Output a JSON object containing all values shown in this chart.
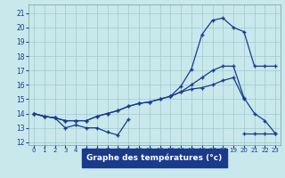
{
  "title": "Graphe des températures (°c)",
  "bg_color": "#c8e8ec",
  "line_color": "#1a3a8c",
  "grid_color": "#a0c8cc",
  "xlim": [
    -0.5,
    23.5
  ],
  "ylim": [
    11.8,
    21.6
  ],
  "xticks": [
    0,
    1,
    2,
    3,
    4,
    5,
    6,
    7,
    8,
    9,
    10,
    11,
    12,
    13,
    14,
    15,
    16,
    17,
    18,
    19,
    20,
    21,
    22,
    23
  ],
  "yticks": [
    12,
    13,
    14,
    15,
    16,
    17,
    18,
    19,
    20,
    21
  ],
  "series": [
    {
      "segs": [
        {
          "x": [
            0,
            1,
            2,
            3,
            4,
            5,
            6,
            7,
            8,
            9
          ],
          "y": [
            14.0,
            13.8,
            13.7,
            13.0,
            13.2,
            13.0,
            13.0,
            12.7,
            12.5,
            13.6
          ]
        },
        {
          "x": [
            20,
            21,
            22,
            23
          ],
          "y": [
            12.6,
            12.6,
            12.6,
            12.6
          ]
        }
      ]
    },
    {
      "segs": [
        {
          "x": [
            0,
            1,
            2,
            3,
            4,
            5,
            6,
            7,
            8,
            9,
            10,
            11,
            12,
            13,
            14,
            15,
            16,
            17,
            18,
            19,
            20
          ],
          "y": [
            14.0,
            13.8,
            13.7,
            13.5,
            13.5,
            13.5,
            13.8,
            14.0,
            14.2,
            14.5,
            14.7,
            14.8,
            15.0,
            15.2,
            15.5,
            15.7,
            15.8,
            16.0,
            16.3,
            16.5,
            15.0
          ]
        }
      ]
    },
    {
      "segs": [
        {
          "x": [
            0,
            1,
            2,
            3,
            4,
            5,
            6,
            7,
            8,
            9,
            10,
            11,
            12,
            13,
            14,
            15,
            16,
            17,
            18,
            19,
            20,
            21,
            22,
            23
          ],
          "y": [
            14.0,
            13.8,
            13.7,
            13.5,
            13.5,
            13.5,
            13.8,
            14.0,
            14.2,
            14.5,
            14.7,
            14.8,
            15.0,
            15.2,
            15.5,
            16.0,
            16.5,
            17.0,
            17.3,
            17.3,
            15.1,
            14.0,
            13.5,
            12.6
          ]
        }
      ]
    },
    {
      "segs": [
        {
          "x": [
            13,
            14,
            15,
            16,
            17,
            18,
            19,
            20,
            21,
            22,
            23
          ],
          "y": [
            15.2,
            15.9,
            17.1,
            19.5,
            20.5,
            20.65,
            20.0,
            19.7,
            17.3,
            17.3,
            17.3
          ]
        }
      ]
    }
  ]
}
